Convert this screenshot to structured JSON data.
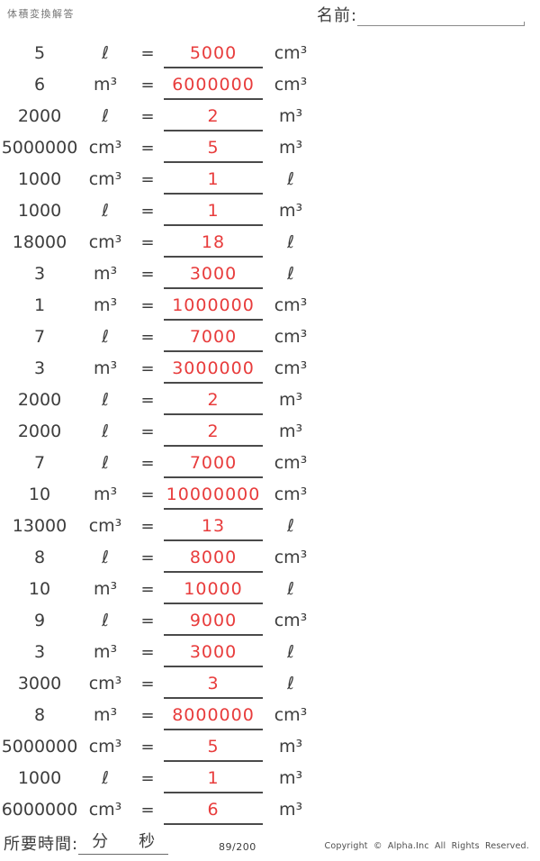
{
  "header": {
    "title": "体積変換解答",
    "name_label": "名前:"
  },
  "equals_sign": "=",
  "problems": [
    {
      "value": "5",
      "from_unit": "ℓ",
      "answer": "5000",
      "to_unit": "cm³"
    },
    {
      "value": "6",
      "from_unit": "m³",
      "answer": "6000000",
      "to_unit": "cm³"
    },
    {
      "value": "2000",
      "from_unit": "ℓ",
      "answer": "2",
      "to_unit": "m³"
    },
    {
      "value": "5000000",
      "from_unit": "cm³",
      "answer": "5",
      "to_unit": "m³"
    },
    {
      "value": "1000",
      "from_unit": "cm³",
      "answer": "1",
      "to_unit": "ℓ"
    },
    {
      "value": "1000",
      "from_unit": "ℓ",
      "answer": "1",
      "to_unit": "m³"
    },
    {
      "value": "18000",
      "from_unit": "cm³",
      "answer": "18",
      "to_unit": "ℓ"
    },
    {
      "value": "3",
      "from_unit": "m³",
      "answer": "3000",
      "to_unit": "ℓ"
    },
    {
      "value": "1",
      "from_unit": "m³",
      "answer": "1000000",
      "to_unit": "cm³"
    },
    {
      "value": "7",
      "from_unit": "ℓ",
      "answer": "7000",
      "to_unit": "cm³"
    },
    {
      "value": "3",
      "from_unit": "m³",
      "answer": "3000000",
      "to_unit": "cm³"
    },
    {
      "value": "2000",
      "from_unit": "ℓ",
      "answer": "2",
      "to_unit": "m³"
    },
    {
      "value": "2000",
      "from_unit": "ℓ",
      "answer": "2",
      "to_unit": "m³"
    },
    {
      "value": "7",
      "from_unit": "ℓ",
      "answer": "7000",
      "to_unit": "cm³"
    },
    {
      "value": "10",
      "from_unit": "m³",
      "answer": "10000000",
      "to_unit": "cm³"
    },
    {
      "value": "13000",
      "from_unit": "cm³",
      "answer": "13",
      "to_unit": "ℓ"
    },
    {
      "value": "8",
      "from_unit": "ℓ",
      "answer": "8000",
      "to_unit": "cm³"
    },
    {
      "value": "10",
      "from_unit": "m³",
      "answer": "10000",
      "to_unit": "ℓ"
    },
    {
      "value": "9",
      "from_unit": "ℓ",
      "answer": "9000",
      "to_unit": "cm³"
    },
    {
      "value": "3",
      "from_unit": "m³",
      "answer": "3000",
      "to_unit": "ℓ"
    },
    {
      "value": "3000",
      "from_unit": "cm³",
      "answer": "3",
      "to_unit": "ℓ"
    },
    {
      "value": "8",
      "from_unit": "m³",
      "answer": "8000000",
      "to_unit": "cm³"
    },
    {
      "value": "5000000",
      "from_unit": "cm³",
      "answer": "5",
      "to_unit": "m³"
    },
    {
      "value": "1000",
      "from_unit": "ℓ",
      "answer": "1",
      "to_unit": "m³"
    },
    {
      "value": "6000000",
      "from_unit": "cm³",
      "answer": "6",
      "to_unit": "m³"
    }
  ],
  "footer": {
    "time_label": "所要時間:",
    "minutes_label": "分",
    "seconds_label": "秒",
    "page_number": "89/200",
    "copyright": "Copyright © Alpha.Inc All Rights Reserved."
  },
  "colors": {
    "answer_red": "#e83c3c",
    "ink": "#3d3d3d",
    "line_dark": "#4a4a4a",
    "line_mid": "#6a6a6a",
    "line_light": "#8a8a8a"
  }
}
